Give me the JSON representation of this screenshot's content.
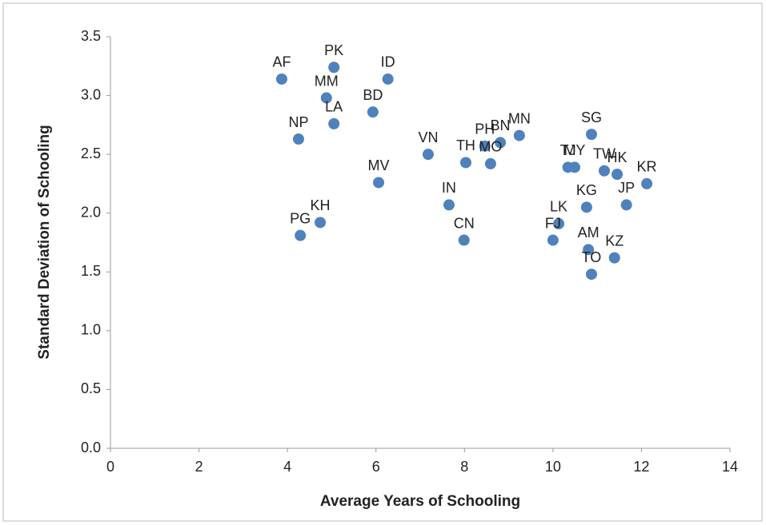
{
  "chart_data": {
    "type": "scatter",
    "x_label": "Average Years of Schooling",
    "y_label": "Standard Deviation of Schooling",
    "color": "#4f81bd",
    "labels": [
      "AF",
      "PK",
      "ID",
      "MM",
      "LA",
      "BD",
      "NP",
      "VN",
      "MV",
      "KH",
      "PG",
      "IN",
      "CN",
      "TH",
      "PH",
      "BN",
      "MO",
      "MN",
      "SG",
      "TJ",
      "MY",
      "TW",
      "HK",
      "KR",
      "KG",
      "JP",
      "LK",
      "FJ",
      "AM",
      "KZ",
      "TO"
    ],
    "x": [
      3.87,
      5.05,
      6.27,
      4.88,
      5.05,
      5.93,
      4.25,
      7.18,
      6.06,
      4.74,
      4.29,
      7.65,
      7.99,
      8.03,
      8.46,
      8.81,
      8.59,
      9.24,
      10.87,
      10.34,
      10.49,
      11.16,
      11.45,
      12.12,
      10.76,
      11.66,
      10.13,
      10.0,
      10.8,
      11.39,
      10.87
    ],
    "values": [
      3.14,
      3.24,
      3.14,
      2.98,
      2.76,
      2.86,
      2.63,
      2.5,
      2.26,
      1.92,
      1.81,
      2.07,
      1.77,
      2.43,
      2.57,
      2.6,
      2.42,
      2.66,
      2.67,
      2.39,
      2.39,
      2.36,
      2.33,
      2.25,
      2.05,
      2.07,
      1.91,
      1.77,
      1.69,
      1.62,
      1.48
    ],
    "xlim": [
      0,
      14
    ],
    "xticks": [
      0,
      2,
      4,
      6,
      8,
      10,
      12,
      14
    ],
    "ylim": [
      0,
      3.5
    ],
    "yticks": [
      {
        "value": 0,
        "label": "0.0"
      },
      0.5,
      {
        "value": 1,
        "label": "1.0"
      },
      1.5,
      {
        "value": 2,
        "label": "2.0"
      },
      2.5,
      {
        "value": 3,
        "label": "3.0"
      },
      3.5
    ]
  }
}
